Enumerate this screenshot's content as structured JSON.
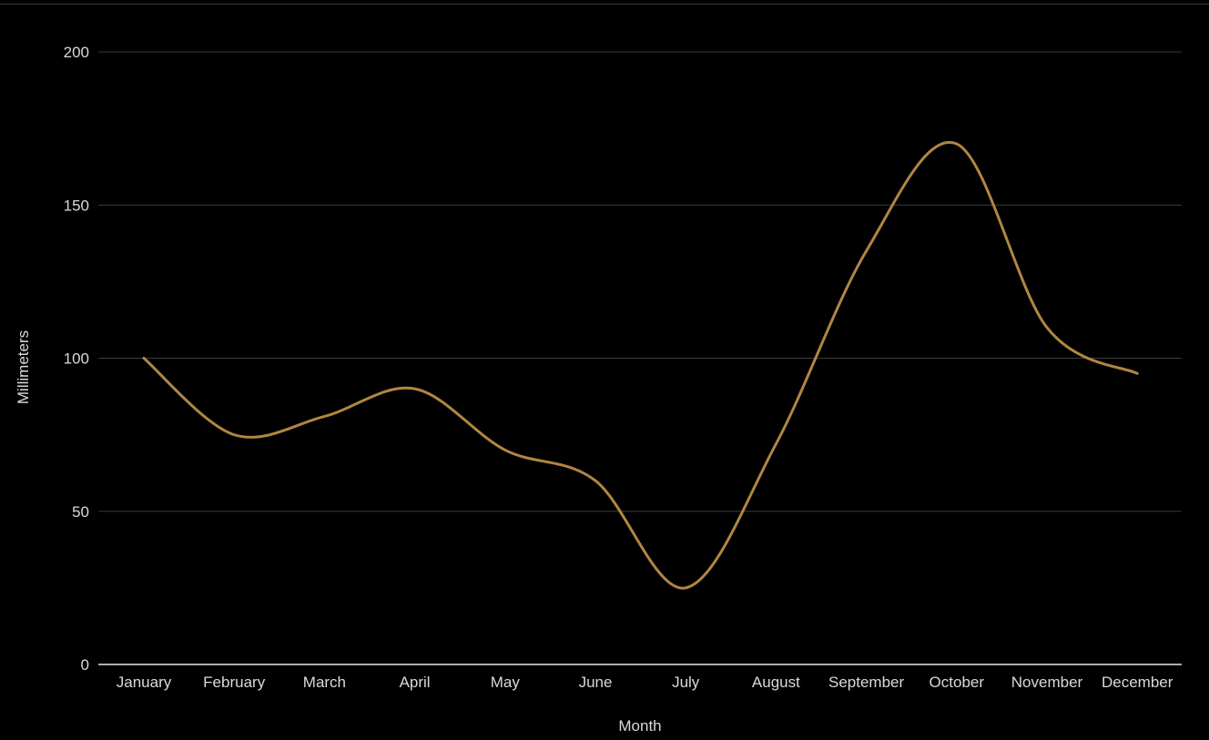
{
  "chart_data": {
    "type": "line",
    "title": "",
    "xlabel": "Month",
    "ylabel": "Millimeters",
    "categories": [
      "January",
      "February",
      "March",
      "April",
      "May",
      "June",
      "July",
      "August",
      "September",
      "October",
      "November",
      "December"
    ],
    "series": [
      {
        "values": [
          100,
          75,
          81,
          90,
          70,
          60,
          25,
          72,
          135,
          170,
          110,
          95
        ]
      }
    ],
    "ylim": [
      0,
      200
    ],
    "yticks": [
      0,
      50,
      100,
      150,
      200
    ],
    "grid": true,
    "smooth": true,
    "line_color": "#b08642",
    "background": "#000000"
  }
}
